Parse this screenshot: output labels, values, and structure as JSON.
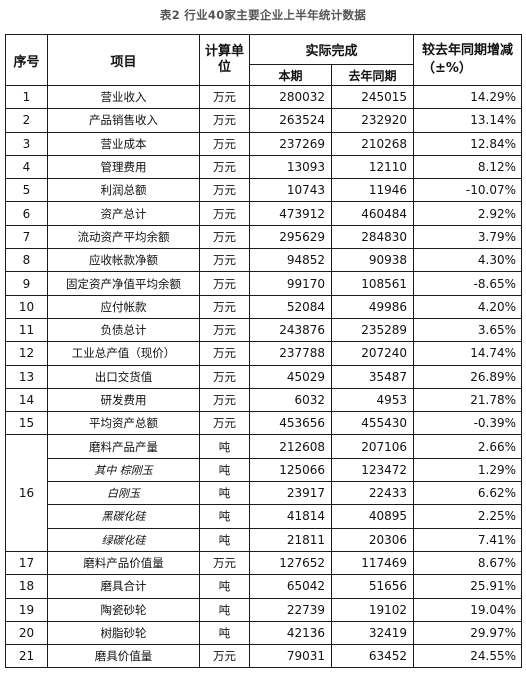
{
  "caption": "表2  行业40家主要企业上半年统计数据",
  "header": {
    "seq": "序号",
    "item": "项目",
    "unit": "计算单位",
    "actual": "实际完成",
    "current": "本期",
    "last_year": "去年同期",
    "change": "较去年同期增减（±%）"
  },
  "rows": [
    {
      "seq": "1",
      "item": "营业收入",
      "unit": "万元",
      "cur": "280032",
      "prev": "245015",
      "pct": "14.29%"
    },
    {
      "seq": "2",
      "item": "产品销售收入",
      "unit": "万元",
      "cur": "263524",
      "prev": "232920",
      "pct": "13.14%"
    },
    {
      "seq": "3",
      "item": "营业成本",
      "unit": "万元",
      "cur": "237269",
      "prev": "210268",
      "pct": "12.84%"
    },
    {
      "seq": "4",
      "item": "管理费用",
      "unit": "万元",
      "cur": "13093",
      "prev": "12110",
      "pct": "8.12%"
    },
    {
      "seq": "5",
      "item": "利润总额",
      "unit": "万元",
      "cur": "10743",
      "prev": "11946",
      "pct": "-10.07%"
    },
    {
      "seq": "6",
      "item": "资产总计",
      "unit": "万元",
      "cur": "473912",
      "prev": "460484",
      "pct": "2.92%"
    },
    {
      "seq": "7",
      "item": "流动资产平均余额",
      "unit": "万元",
      "cur": "295629",
      "prev": "284830",
      "pct": "3.79%"
    },
    {
      "seq": "8",
      "item": "应收帐款净额",
      "unit": "万元",
      "cur": "94852",
      "prev": "90938",
      "pct": "4.30%"
    },
    {
      "seq": "9",
      "item": "固定资产净值平均余额",
      "unit": "万元",
      "cur": "99170",
      "prev": "108561",
      "pct": "-8.65%"
    },
    {
      "seq": "10",
      "item": "应付帐款",
      "unit": "万元",
      "cur": "52084",
      "prev": "49986",
      "pct": "4.20%"
    },
    {
      "seq": "11",
      "item": "负债总计",
      "unit": "万元",
      "cur": "243876",
      "prev": "235289",
      "pct": "3.65%"
    },
    {
      "seq": "12",
      "item": "工业总产值（现价）",
      "unit": "万元",
      "cur": "237788",
      "prev": "207240",
      "pct": "14.74%"
    },
    {
      "seq": "13",
      "item": "出口交货值",
      "unit": "万元",
      "cur": "45029",
      "prev": "35487",
      "pct": "26.89%"
    },
    {
      "seq": "14",
      "item": "研发费用",
      "unit": "万元",
      "cur": "6032",
      "prev": "4953",
      "pct": "21.78%"
    },
    {
      "seq": "15",
      "item": "平均资产总额",
      "unit": "万元",
      "cur": "453656",
      "prev": "455430",
      "pct": "-0.39%"
    }
  ],
  "group16": {
    "seq": "16",
    "rows": [
      {
        "item": "磨料产品产量",
        "unit": "吨",
        "cur": "212608",
        "prev": "207106",
        "pct": "2.66%"
      },
      {
        "item": "其中  棕刚玉",
        "unit": "吨",
        "cur": "125066",
        "prev": "123472",
        "pct": "1.29%"
      },
      {
        "item": "白刚玉",
        "unit": "吨",
        "cur": "23917",
        "prev": "22433",
        "pct": "6.62%"
      },
      {
        "item": "黑碳化硅",
        "unit": "吨",
        "cur": "41814",
        "prev": "40895",
        "pct": "2.25%"
      },
      {
        "item": "绿碳化硅",
        "unit": "吨",
        "cur": "21811",
        "prev": "20306",
        "pct": "7.41%"
      }
    ]
  },
  "rows_tail": [
    {
      "seq": "17",
      "item": "磨料产品价值量",
      "unit": "万元",
      "cur": "127652",
      "prev": "117469",
      "pct": "8.67%"
    },
    {
      "seq": "18",
      "item": "磨具合计",
      "unit": "吨",
      "cur": "65042",
      "prev": "51656",
      "pct": "25.91%"
    },
    {
      "seq": "19",
      "item": "陶瓷砂轮",
      "unit": "吨",
      "cur": "22739",
      "prev": "19102",
      "pct": "19.04%"
    },
    {
      "seq": "20",
      "item": "树脂砂轮",
      "unit": "吨",
      "cur": "42136",
      "prev": "32419",
      "pct": "29.97%"
    },
    {
      "seq": "21",
      "item": "磨具价值量",
      "unit": "万元",
      "cur": "79031",
      "prev": "63452",
      "pct": "24.55%"
    }
  ]
}
